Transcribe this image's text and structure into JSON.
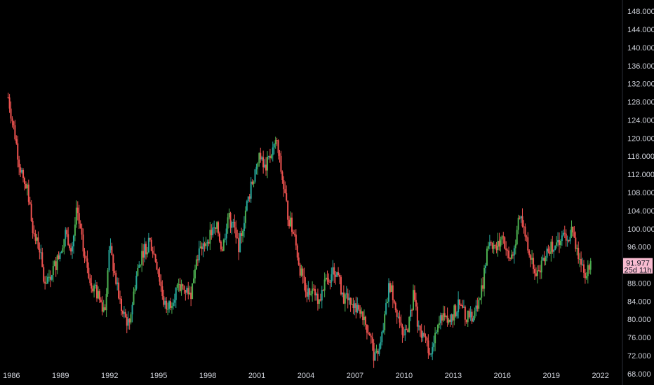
{
  "chart_data": {
    "type": "candlestick",
    "title": "",
    "xlabel": "",
    "ylabel": "",
    "y_axis": {
      "position": "right",
      "range": [
        65.5,
        150.5
      ],
      "ticks": [
        68,
        72,
        76,
        80,
        84,
        88,
        92,
        96,
        100,
        104,
        108,
        112,
        116,
        120,
        124,
        128,
        132,
        136,
        140,
        144,
        148
      ],
      "tick_labels": [
        "68.000",
        "72.000",
        "76.000",
        "80.000",
        "84.000",
        "88.000",
        "92.000",
        "96.000",
        "100.000",
        "104.000",
        "108.000",
        "112.000",
        "116.000",
        "120.000",
        "124.000",
        "128.000",
        "132.000",
        "136.000",
        "140.000",
        "144.000",
        "148.000"
      ]
    },
    "x_axis": {
      "range": [
        1985.3,
        2023.3
      ],
      "ticks": [
        1986,
        1989,
        1992,
        1995,
        1998,
        2001,
        2004,
        2007,
        2010,
        2013,
        2016,
        2019,
        2022
      ],
      "tick_labels": [
        "1986",
        "1989",
        "1992",
        "1995",
        "1998",
        "2001",
        "2004",
        "2007",
        "2010",
        "2013",
        "2016",
        "2019",
        "2022"
      ]
    },
    "grid": false,
    "colors": {
      "up": "#26a69a",
      "up_bright": "#4caf50",
      "down": "#ef5350",
      "background": "#000000",
      "axis_text": "#d1d4dc",
      "price_tag": "#f8bbd0"
    },
    "price_path": [
      [
        1985.8,
        129
      ],
      [
        1986.2,
        121
      ],
      [
        1986.5,
        114
      ],
      [
        1987.0,
        108
      ],
      [
        1987.4,
        98
      ],
      [
        1987.7,
        96
      ],
      [
        1988.0,
        88
      ],
      [
        1988.4,
        90
      ],
      [
        1988.8,
        93
      ],
      [
        1989.3,
        99
      ],
      [
        1989.7,
        96
      ],
      [
        1990.0,
        104
      ],
      [
        1990.4,
        95
      ],
      [
        1990.8,
        89
      ],
      [
        1991.3,
        85
      ],
      [
        1991.7,
        82
      ],
      [
        1992.0,
        96
      ],
      [
        1992.4,
        88
      ],
      [
        1992.8,
        81
      ],
      [
        1993.2,
        79
      ],
      [
        1993.6,
        89
      ],
      [
        1994.0,
        95
      ],
      [
        1994.5,
        97
      ],
      [
        1994.9,
        92
      ],
      [
        1995.3,
        84
      ],
      [
        1995.6,
        83
      ],
      [
        1996.0,
        86
      ],
      [
        1996.5,
        87
      ],
      [
        1997.0,
        86
      ],
      [
        1997.3,
        94
      ],
      [
        1997.8,
        97
      ],
      [
        1998.2,
        99
      ],
      [
        1998.6,
        100
      ],
      [
        1998.9,
        95
      ],
      [
        1999.2,
        103
      ],
      [
        1999.6,
        100
      ],
      [
        1999.9,
        96
      ],
      [
        2000.3,
        104
      ],
      [
        2000.7,
        110
      ],
      [
        2001.1,
        116
      ],
      [
        2001.5,
        113
      ],
      [
        2001.9,
        117
      ],
      [
        2002.2,
        119
      ],
      [
        2002.6,
        110
      ],
      [
        2002.9,
        103
      ],
      [
        2003.3,
        98
      ],
      [
        2003.7,
        90
      ],
      [
        2004.1,
        86
      ],
      [
        2004.5,
        87
      ],
      [
        2004.8,
        84
      ],
      [
        2005.3,
        89
      ],
      [
        2005.8,
        91
      ],
      [
        2006.3,
        85
      ],
      [
        2006.7,
        85
      ],
      [
        2007.1,
        82
      ],
      [
        2007.5,
        80
      ],
      [
        2007.9,
        77
      ],
      [
        2008.2,
        71
      ],
      [
        2008.5,
        73
      ],
      [
        2008.8,
        80
      ],
      [
        2009.1,
        88
      ],
      [
        2009.5,
        83
      ],
      [
        2009.9,
        76
      ],
      [
        2010.3,
        79
      ],
      [
        2010.6,
        86
      ],
      [
        2010.9,
        77
      ],
      [
        2011.3,
        75
      ],
      [
        2011.7,
        73
      ],
      [
        2012.0,
        77
      ],
      [
        2012.4,
        82
      ],
      [
        2012.8,
        80
      ],
      [
        2013.3,
        83
      ],
      [
        2013.7,
        81
      ],
      [
        2014.2,
        80
      ],
      [
        2014.6,
        84
      ],
      [
        2014.9,
        90
      ],
      [
        2015.2,
        98
      ],
      [
        2015.6,
        95
      ],
      [
        2016.0,
        99
      ],
      [
        2016.4,
        93
      ],
      [
        2016.8,
        96
      ],
      [
        2017.0,
        103
      ],
      [
        2017.4,
        99
      ],
      [
        2017.8,
        93
      ],
      [
        2018.2,
        90
      ],
      [
        2018.5,
        94
      ],
      [
        2018.9,
        96
      ],
      [
        2019.3,
        97
      ],
      [
        2019.7,
        98
      ],
      [
        2020.0,
        97
      ],
      [
        2020.2,
        100
      ],
      [
        2020.4,
        97
      ],
      [
        2020.7,
        94
      ],
      [
        2020.9,
        93
      ],
      [
        2021.1,
        90
      ],
      [
        2021.4,
        92
      ]
    ],
    "current_price": {
      "value": 91.977,
      "label": "91.977",
      "countdown": "25d 11h"
    }
  }
}
